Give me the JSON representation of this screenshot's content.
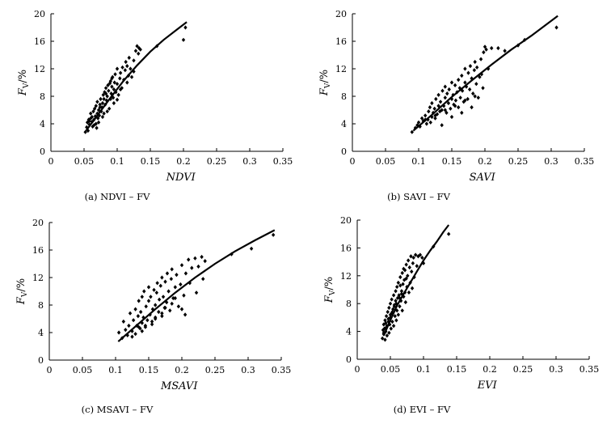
{
  "chart_data": [
    {
      "type": "scatter",
      "id": "a",
      "xlabel": "NDVI",
      "ylabel_main": "F",
      "ylabel_sub": "V",
      "ylabel_unit": "/%",
      "caption": "(a) NDVI – FV",
      "xlim": [
        0,
        0.35
      ],
      "ylim": [
        0,
        20
      ],
      "xticks": [
        "0",
        "0.05",
        "0.1",
        "0.15",
        "0.2",
        "0.25",
        "0.3",
        "0.35"
      ],
      "yticks": [
        "0",
        "4",
        "8",
        "12",
        "16",
        "20"
      ],
      "fit_curve": {
        "x": [
          0.053,
          0.07,
          0.09,
          0.11,
          0.13,
          0.15,
          0.17,
          0.19,
          0.205
        ],
        "y": [
          3.0,
          5.2,
          7.8,
          10.3,
          12.5,
          14.5,
          16.2,
          17.7,
          18.8
        ]
      },
      "points": {
        "x": [
          0.052,
          0.054,
          0.055,
          0.056,
          0.057,
          0.058,
          0.06,
          0.06,
          0.062,
          0.062,
          0.063,
          0.064,
          0.065,
          0.066,
          0.067,
          0.068,
          0.068,
          0.07,
          0.07,
          0.071,
          0.072,
          0.073,
          0.074,
          0.075,
          0.076,
          0.077,
          0.078,
          0.079,
          0.08,
          0.08,
          0.081,
          0.082,
          0.083,
          0.084,
          0.085,
          0.086,
          0.087,
          0.088,
          0.089,
          0.09,
          0.09,
          0.091,
          0.092,
          0.093,
          0.094,
          0.095,
          0.096,
          0.097,
          0.098,
          0.1,
          0.1,
          0.102,
          0.104,
          0.105,
          0.107,
          0.108,
          0.11,
          0.112,
          0.113,
          0.115,
          0.117,
          0.118,
          0.12,
          0.122,
          0.125,
          0.128,
          0.13,
          0.132,
          0.133,
          0.135,
          0.065,
          0.072,
          0.078,
          0.085,
          0.095,
          0.1,
          0.058,
          0.069,
          0.074,
          0.083,
          0.092,
          0.105,
          0.115,
          0.125,
          0.16,
          0.2,
          0.203
        ],
        "y": [
          2.8,
          3.5,
          4.2,
          3.0,
          4.6,
          3.9,
          4.8,
          5.5,
          4.3,
          5.0,
          3.6,
          5.8,
          4.6,
          6.2,
          5.1,
          4.0,
          6.6,
          5.5,
          7.2,
          4.8,
          6.0,
          5.2,
          6.8,
          7.6,
          5.8,
          6.4,
          7.0,
          8.2,
          5.5,
          7.6,
          8.6,
          6.8,
          9.2,
          7.4,
          8.0,
          9.6,
          8.8,
          6.2,
          9.9,
          7.6,
          10.2,
          8.4,
          9.4,
          10.8,
          7.8,
          9.0,
          10.0,
          11.2,
          8.6,
          9.8,
          12.0,
          8.2,
          10.6,
          11.4,
          9.2,
          12.2,
          10.4,
          11.8,
          13.0,
          12.4,
          11.0,
          13.6,
          12.0,
          10.8,
          13.2,
          14.6,
          15.3,
          14.2,
          15.0,
          14.8,
          3.8,
          4.2,
          5.0,
          5.8,
          7.0,
          7.5,
          4.4,
          3.4,
          6.4,
          8.4,
          10.6,
          9.0,
          10.0,
          11.6,
          15.3,
          16.2,
          18.0
        ]
      }
    },
    {
      "type": "scatter",
      "id": "b",
      "xlabel": "SAVI",
      "ylabel_main": "F",
      "ylabel_sub": "V",
      "ylabel_unit": "/%",
      "caption": "(b) SAVI – FV",
      "xlim": [
        0,
        0.35
      ],
      "ylim": [
        0,
        20
      ],
      "xticks": [
        "0",
        "0.05",
        "0.1",
        "0.15",
        "0.2",
        "0.25",
        "0.3",
        "0.35"
      ],
      "yticks": [
        "0",
        "4",
        "8",
        "12",
        "16",
        "20"
      ],
      "fit_curve": {
        "x": [
          0.092,
          0.12,
          0.15,
          0.18,
          0.21,
          0.24,
          0.27,
          0.31
        ],
        "y": [
          3.0,
          5.3,
          7.9,
          10.3,
          12.6,
          14.8,
          16.8,
          19.7
        ]
      },
      "points": {
        "x": [
          0.09,
          0.095,
          0.098,
          0.1,
          0.102,
          0.105,
          0.107,
          0.11,
          0.112,
          0.114,
          0.115,
          0.117,
          0.118,
          0.12,
          0.12,
          0.122,
          0.124,
          0.125,
          0.126,
          0.128,
          0.13,
          0.13,
          0.132,
          0.133,
          0.135,
          0.136,
          0.138,
          0.14,
          0.14,
          0.142,
          0.143,
          0.145,
          0.146,
          0.148,
          0.15,
          0.15,
          0.152,
          0.153,
          0.155,
          0.156,
          0.158,
          0.16,
          0.16,
          0.162,
          0.163,
          0.165,
          0.166,
          0.168,
          0.17,
          0.17,
          0.172,
          0.174,
          0.175,
          0.177,
          0.178,
          0.18,
          0.182,
          0.184,
          0.185,
          0.187,
          0.188,
          0.19,
          0.192,
          0.194,
          0.195,
          0.197,
          0.198,
          0.2,
          0.202,
          0.205,
          0.21,
          0.22,
          0.23,
          0.25,
          0.26,
          0.308,
          0.11,
          0.125,
          0.14,
          0.155,
          0.17,
          0.185,
          0.135,
          0.15,
          0.165,
          0.18
        ],
        "y": [
          2.8,
          3.4,
          3.8,
          4.2,
          3.6,
          4.8,
          4.4,
          5.2,
          4.0,
          4.6,
          5.8,
          6.4,
          4.2,
          5.0,
          7.0,
          5.6,
          6.2,
          4.8,
          7.6,
          5.4,
          6.6,
          8.2,
          5.8,
          7.2,
          6.0,
          8.8,
          6.6,
          7.8,
          9.4,
          5.6,
          8.4,
          7.0,
          9.0,
          6.2,
          7.6,
          10.0,
          8.2,
          6.8,
          9.6,
          7.4,
          8.6,
          10.4,
          6.4,
          9.2,
          7.8,
          11.0,
          8.8,
          7.2,
          10.0,
          12.0,
          9.4,
          7.6,
          11.4,
          9.0,
          12.4,
          10.6,
          8.4,
          11.8,
          13.0,
          9.8,
          12.2,
          7.8,
          10.8,
          13.4,
          11.2,
          9.2,
          14.4,
          15.2,
          14.8,
          12.0,
          15.0,
          15.0,
          14.6,
          15.4,
          16.2,
          18.0,
          4.6,
          5.2,
          6.0,
          6.6,
          7.4,
          8.0,
          3.8,
          5.0,
          5.6,
          6.4
        ]
      }
    },
    {
      "type": "scatter",
      "id": "c",
      "xlabel": "MSAVI",
      "ylabel_main": "F",
      "ylabel_sub": "V",
      "ylabel_unit": "/%",
      "caption": "(c) MSAVI – FV",
      "xlim": [
        0,
        0.35
      ],
      "ylim": [
        0,
        20
      ],
      "xticks": [
        "0",
        "0.05",
        "0.1",
        "0.15",
        "0.2",
        "0.25",
        "0.3",
        "0.35"
      ],
      "yticks": [
        "0",
        "4",
        "8",
        "12",
        "16",
        "20"
      ],
      "fit_curve": {
        "x": [
          0.104,
          0.13,
          0.16,
          0.19,
          0.22,
          0.25,
          0.28,
          0.31,
          0.34
        ],
        "y": [
          2.7,
          4.9,
          7.4,
          9.8,
          12.0,
          14.0,
          15.8,
          17.4,
          18.9
        ]
      },
      "points": {
        "x": [
          0.105,
          0.11,
          0.112,
          0.115,
          0.118,
          0.12,
          0.122,
          0.125,
          0.127,
          0.13,
          0.13,
          0.132,
          0.134,
          0.135,
          0.137,
          0.138,
          0.14,
          0.14,
          0.142,
          0.143,
          0.145,
          0.146,
          0.148,
          0.15,
          0.15,
          0.152,
          0.153,
          0.155,
          0.156,
          0.158,
          0.16,
          0.16,
          0.162,
          0.163,
          0.165,
          0.166,
          0.168,
          0.17,
          0.17,
          0.172,
          0.174,
          0.175,
          0.177,
          0.178,
          0.18,
          0.182,
          0.184,
          0.185,
          0.187,
          0.19,
          0.192,
          0.195,
          0.198,
          0.2,
          0.203,
          0.206,
          0.21,
          0.212,
          0.215,
          0.22,
          0.222,
          0.225,
          0.23,
          0.232,
          0.235,
          0.275,
          0.305,
          0.338,
          0.14,
          0.155,
          0.17,
          0.185,
          0.2,
          0.145,
          0.16,
          0.175,
          0.19,
          0.205,
          0.125,
          0.135
        ],
        "y": [
          4.0,
          3.2,
          5.6,
          4.4,
          3.6,
          5.0,
          6.8,
          4.2,
          5.8,
          3.8,
          7.4,
          5.0,
          6.4,
          8.6,
          4.6,
          7.0,
          5.4,
          9.2,
          6.2,
          10.0,
          4.8,
          7.8,
          5.8,
          8.6,
          10.6,
          6.6,
          9.2,
          5.2,
          7.4,
          10.2,
          8.0,
          6.0,
          9.8,
          11.2,
          7.0,
          8.8,
          10.8,
          6.4,
          12.0,
          9.2,
          7.6,
          11.4,
          8.4,
          12.6,
          10.0,
          7.2,
          11.8,
          13.2,
          9.0,
          10.6,
          12.4,
          7.8,
          11.0,
          13.8,
          9.4,
          12.6,
          14.6,
          11.2,
          13.4,
          14.8,
          9.8,
          13.6,
          15.0,
          11.8,
          14.4,
          15.4,
          16.2,
          18.2,
          4.2,
          5.6,
          6.8,
          8.2,
          7.4,
          5.0,
          6.2,
          7.6,
          9.0,
          6.6,
          3.4,
          4.8
        ]
      }
    },
    {
      "type": "scatter",
      "id": "d",
      "xlabel": "EVI",
      "ylabel_main": "F",
      "ylabel_sub": "V",
      "ylabel_unit": "/%",
      "caption": "(d) EVI – FV",
      "xlim": [
        0,
        0.35
      ],
      "ylim": [
        0,
        20
      ],
      "xticks": [
        "0",
        "0.05",
        "0.1",
        "0.15",
        "0.2",
        "0.25",
        "0.3",
        "0.35"
      ],
      "yticks": [
        "0",
        "4",
        "8",
        "12",
        "16",
        "20"
      ],
      "fit_curve": {
        "x": [
          0.04,
          0.05,
          0.06,
          0.07,
          0.08,
          0.09,
          0.1,
          0.11,
          0.12,
          0.13,
          0.138
        ],
        "y": [
          3.4,
          5.6,
          7.7,
          9.4,
          11.0,
          12.6,
          14.2,
          15.6,
          16.9,
          18.3,
          19.3
        ]
      },
      "points": {
        "x": [
          0.038,
          0.039,
          0.04,
          0.04,
          0.041,
          0.042,
          0.042,
          0.043,
          0.044,
          0.045,
          0.045,
          0.046,
          0.047,
          0.048,
          0.048,
          0.049,
          0.05,
          0.05,
          0.051,
          0.052,
          0.052,
          0.053,
          0.054,
          0.055,
          0.055,
          0.056,
          0.057,
          0.058,
          0.058,
          0.059,
          0.06,
          0.06,
          0.061,
          0.062,
          0.062,
          0.063,
          0.064,
          0.065,
          0.065,
          0.066,
          0.067,
          0.068,
          0.068,
          0.069,
          0.07,
          0.07,
          0.071,
          0.072,
          0.073,
          0.074,
          0.075,
          0.076,
          0.077,
          0.078,
          0.079,
          0.08,
          0.081,
          0.082,
          0.083,
          0.084,
          0.085,
          0.086,
          0.088,
          0.09,
          0.092,
          0.095,
          0.098,
          0.1,
          0.115,
          0.138,
          0.044,
          0.047,
          0.053,
          0.056,
          0.064,
          0.072,
          0.04,
          0.043,
          0.05,
          0.059,
          0.067,
          0.074
        ],
        "y": [
          3.0,
          4.2,
          3.6,
          5.0,
          4.4,
          2.8,
          5.6,
          4.0,
          6.2,
          3.4,
          4.8,
          6.8,
          5.4,
          3.8,
          7.4,
          5.0,
          6.0,
          8.0,
          4.4,
          6.6,
          8.6,
          5.4,
          7.2,
          9.2,
          4.8,
          7.8,
          6.2,
          9.8,
          8.4,
          5.6,
          7.0,
          10.4,
          8.8,
          6.4,
          11.0,
          9.2,
          7.6,
          10.6,
          11.8,
          8.4,
          9.8,
          12.4,
          7.0,
          10.8,
          13.0,
          9.0,
          11.4,
          12.8,
          8.2,
          13.6,
          10.4,
          12.0,
          14.2,
          9.6,
          13.2,
          11.0,
          14.8,
          12.6,
          10.2,
          13.8,
          14.6,
          11.8,
          15.0,
          13.4,
          14.8,
          15.0,
          14.6,
          13.8,
          16.2,
          18.0,
          4.6,
          5.8,
          6.8,
          7.6,
          8.8,
          9.6,
          3.8,
          5.2,
          6.4,
          8.0,
          9.4,
          11.6
        ]
      }
    }
  ]
}
